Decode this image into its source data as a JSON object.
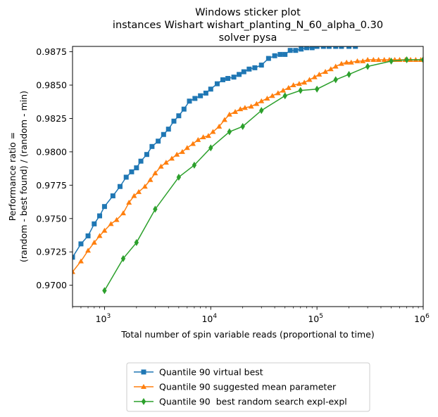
{
  "chart_data": {
    "type": "line",
    "title_lines": [
      "Windows sticker plot",
      "instances Wishart wishart_planting_N_60_alpha_0.30",
      "solver pysa"
    ],
    "xlabel": "Total number of spin variable reads (proportional to time)",
    "ylabel_lines": [
      "Performance ratio =",
      "(random - best found) / (random - min)"
    ],
    "x_scale": "log",
    "xlim": [
      500,
      1000000
    ],
    "ylim": [
      0.9684,
      0.9879
    ],
    "grid": false,
    "legend_position": "bottom-center, below plot",
    "x_ticks": [
      {
        "value": 1000,
        "base": "10",
        "exp": "3"
      },
      {
        "value": 10000,
        "base": "10",
        "exp": "4"
      },
      {
        "value": 100000,
        "base": "10",
        "exp": "5"
      },
      {
        "value": 1000000,
        "base": "10",
        "exp": "6"
      }
    ],
    "y_ticks": [
      {
        "value": 0.97,
        "label": "0.9700"
      },
      {
        "value": 0.9725,
        "label": "0.9725"
      },
      {
        "value": 0.975,
        "label": "0.9750"
      },
      {
        "value": 0.9775,
        "label": "0.9775"
      },
      {
        "value": 0.98,
        "label": "0.9800"
      },
      {
        "value": 0.9825,
        "label": "0.9825"
      },
      {
        "value": 0.985,
        "label": "0.9850"
      },
      {
        "value": 0.9875,
        "label": "0.9875"
      }
    ],
    "series": [
      {
        "name": "Quantile 90 virtual best",
        "color": "#1f77b4",
        "marker": "square",
        "x": [
          500,
          600,
          700,
          800,
          900,
          1000,
          1200,
          1400,
          1600,
          1800,
          2000,
          2200,
          2500,
          2800,
          3200,
          3600,
          4000,
          4500,
          5000,
          5600,
          6300,
          7100,
          8000,
          9000,
          10000,
          11500,
          13000,
          14500,
          16500,
          18500,
          20500,
          23000,
          26000,
          30000,
          35000,
          40000,
          45000,
          50000,
          56000,
          63000,
          71000,
          80000,
          90000,
          100000,
          115000,
          130000,
          150000,
          170000,
          200000,
          230000
        ],
        "y": [
          0.9721,
          0.9731,
          0.9737,
          0.9746,
          0.9752,
          0.9759,
          0.9767,
          0.9774,
          0.9781,
          0.9785,
          0.9788,
          0.9793,
          0.9798,
          0.9804,
          0.9808,
          0.9813,
          0.9817,
          0.9823,
          0.9827,
          0.9832,
          0.9838,
          0.984,
          0.9842,
          0.9844,
          0.9847,
          0.9851,
          0.9854,
          0.9855,
          0.9856,
          0.9858,
          0.986,
          0.9862,
          0.9863,
          0.9865,
          0.987,
          0.9872,
          0.9873,
          0.9873,
          0.9876,
          0.9876,
          0.9877,
          0.9878,
          0.9878,
          0.9879,
          0.9879,
          0.9879,
          0.9879,
          0.9879,
          0.9879,
          0.9879
        ]
      },
      {
        "name": "Quantile 90 suggested mean parameter",
        "color": "#ff7f0e",
        "marker": "triangle",
        "x": [
          500,
          600,
          700,
          800,
          900,
          1000,
          1150,
          1300,
          1500,
          1700,
          1900,
          2100,
          2400,
          2700,
          3000,
          3400,
          3800,
          4300,
          4800,
          5400,
          6000,
          6800,
          7600,
          8500,
          9500,
          10500,
          12000,
          13500,
          15000,
          17000,
          19000,
          21000,
          24000,
          27000,
          30000,
          34000,
          38000,
          43000,
          48000,
          54000,
          60000,
          68000,
          76000,
          85000,
          95000,
          105000,
          120000,
          135000,
          150000,
          170000,
          190000,
          210000,
          240000,
          270000,
          300000,
          340000,
          380000,
          430000,
          480000,
          540000,
          600000,
          680000,
          760000,
          850000,
          950000
        ],
        "y": [
          0.971,
          0.9718,
          0.9726,
          0.9732,
          0.9737,
          0.9741,
          0.9746,
          0.9749,
          0.9754,
          0.9762,
          0.9767,
          0.977,
          0.9774,
          0.9779,
          0.9784,
          0.9789,
          0.9792,
          0.9795,
          0.9798,
          0.98,
          0.9803,
          0.9806,
          0.9809,
          0.9811,
          0.9812,
          0.9815,
          0.9819,
          0.9824,
          0.9828,
          0.983,
          0.9832,
          0.9833,
          0.9834,
          0.9836,
          0.9838,
          0.984,
          0.9842,
          0.9844,
          0.9846,
          0.9848,
          0.985,
          0.9851,
          0.9852,
          0.9854,
          0.9856,
          0.9858,
          0.986,
          0.9862,
          0.9864,
          0.9866,
          0.9867,
          0.9867,
          0.9868,
          0.9868,
          0.9869,
          0.9869,
          0.9869,
          0.9869,
          0.9869,
          0.9869,
          0.9869,
          0.9869,
          0.9869,
          0.9869,
          0.9869
        ]
      },
      {
        "name": "Quantile 90  best random search expl-expl",
        "color": "#2ca02c",
        "marker": "diamond",
        "x": [
          1000,
          1500,
          2000,
          3000,
          5000,
          7000,
          10000,
          15000,
          20000,
          30000,
          50000,
          70000,
          100000,
          150000,
          200000,
          300000,
          500000,
          700000,
          1000000
        ],
        "y": [
          0.9696,
          0.972,
          0.9732,
          0.9757,
          0.9781,
          0.979,
          0.9803,
          0.9815,
          0.9819,
          0.9831,
          0.9842,
          0.9846,
          0.9847,
          0.9854,
          0.9858,
          0.9864,
          0.9868,
          0.9869,
          0.9869
        ]
      }
    ]
  }
}
